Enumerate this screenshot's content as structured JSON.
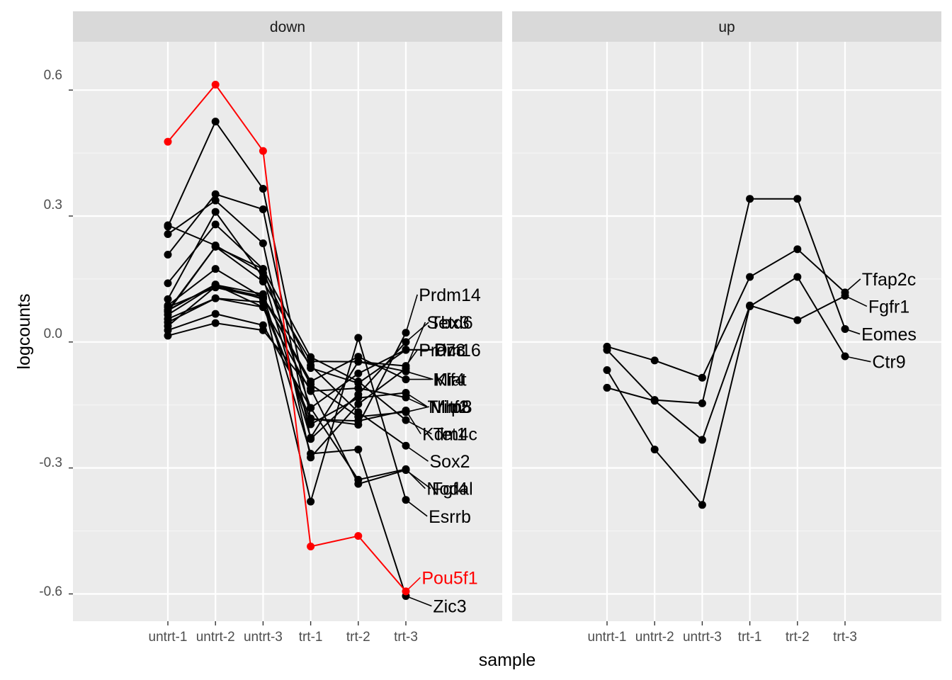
{
  "chart_data": {
    "type": "line",
    "xlabel": "sample",
    "ylabel": "logcounts",
    "categories": [
      "untrt-1",
      "untrt-2",
      "untrt-3",
      "trt-1",
      "trt-2",
      "trt-3"
    ],
    "ylim": [
      -0.665,
      0.715
    ],
    "y_ticks": [
      {
        "value": 0.6,
        "label": "0.6"
      },
      {
        "value": 0.3,
        "label": "0.3"
      },
      {
        "value": 0.0,
        "label": "0.0"
      },
      {
        "value": -0.3,
        "label": "-0.3"
      },
      {
        "value": -0.6,
        "label": "-0.6"
      }
    ],
    "grid": true,
    "legend": "none",
    "highlight_color": "#ff0000",
    "line_color": "#000000",
    "panels": [
      {
        "name": "down",
        "series": [
          {
            "name": "Pou5f1",
            "values": [
              0.477,
              0.613,
              0.455,
              -0.487,
              -0.462,
              -0.594
            ],
            "label_value": -0.561,
            "highlight": true
          },
          {
            "name": "Prdm14",
            "values": [
              0.275,
              0.525,
              0.365,
              -0.182,
              -0.197,
              0.022
            ],
            "label_value": 0.113
          },
          {
            "name": "Tbx3",
            "values": [
              0.208,
              0.352,
              0.316,
              -0.231,
              -0.125,
              0.0
            ],
            "label_value": 0.047
          },
          {
            "name": "Setd6",
            "values": [
              0.257,
              0.337,
              0.235,
              -0.275,
              -0.148,
              -0.063
            ],
            "label_value": 0.047
          },
          {
            "name": "Dcc",
            "values": [
              0.14,
              0.28,
              0.174,
              -0.157,
              -0.075,
              -0.018
            ],
            "label_value": -0.018
          },
          {
            "name": "P73",
            "values": [
              0.278,
              0.23,
              0.164,
              -0.062,
              -0.098,
              -0.019
            ],
            "label_value": -0.019
          },
          {
            "name": "Prdm16",
            "values": [
              0.102,
              0.31,
              0.154,
              -0.228,
              -0.047,
              -0.057
            ],
            "label_value": -0.019
          },
          {
            "name": "Miat",
            "values": [
              0.087,
              0.174,
              0.106,
              -0.094,
              -0.035,
              -0.089
            ],
            "label_value": -0.089
          },
          {
            "name": "Klf4",
            "values": [
              0.075,
              0.227,
              0.144,
              -0.046,
              -0.047,
              -0.07
            ],
            "label_value": -0.089
          },
          {
            "name": "Trim8",
            "values": [
              0.065,
              0.136,
              0.083,
              -0.117,
              -0.11,
              -0.132
            ],
            "label_value": -0.154
          },
          {
            "name": "Nlrp5",
            "values": [
              0.047,
              0.104,
              0.095,
              -0.196,
              -0.133,
              -0.121
            ],
            "label_value": -0.154
          },
          {
            "name": "Mltf2",
            "values": [
              0.038,
              0.132,
              0.108,
              -0.101,
              -0.178,
              -0.167
            ],
            "label_value": -0.154
          },
          {
            "name": "Kdm4c",
            "values": [
              0.055,
              0.104,
              0.083,
              -0.184,
              -0.188,
              -0.163
            ],
            "label_value": -0.219
          },
          {
            "name": "Tet1",
            "values": [
              0.072,
              0.227,
              0.174,
              -0.036,
              -0.094,
              -0.186
            ],
            "label_value": -0.219
          },
          {
            "name": "Sox2",
            "values": [
              0.083,
              0.13,
              0.104,
              -0.056,
              -0.167,
              -0.247
            ],
            "label_value": -0.284
          },
          {
            "name": "Nodal",
            "values": [
              0.028,
              0.067,
              0.04,
              -0.157,
              -0.328,
              -0.303
            ],
            "label_value": -0.349
          },
          {
            "name": "Fgf4",
            "values": [
              0.015,
              0.045,
              0.028,
              -0.111,
              -0.338,
              -0.305
            ],
            "label_value": -0.349
          },
          {
            "name": "Esrrb",
            "values": [
              0.075,
              0.137,
              0.102,
              -0.38,
              0.01,
              -0.376
            ],
            "label_value": -0.415
          },
          {
            "name": "Zic3",
            "values": [
              0.076,
              0.136,
              0.114,
              -0.266,
              -0.256,
              -0.605
            ],
            "label_value": -0.629
          }
        ]
      },
      {
        "name": "up",
        "series": [
          {
            "name": "Tfap2c",
            "values": [
              -0.011,
              -0.044,
              -0.085,
              0.155,
              0.221,
              0.118
            ],
            "label_value": 0.15
          },
          {
            "name": "Fgfr1",
            "values": [
              -0.109,
              -0.14,
              -0.233,
              0.087,
              0.052,
              0.11
            ],
            "label_value": 0.085
          },
          {
            "name": "Eomes",
            "values": [
              -0.019,
              -0.138,
              -0.146,
              0.341,
              0.341,
              0.031
            ],
            "label_value": 0.019
          },
          {
            "name": "Ctr9",
            "values": [
              -0.067,
              -0.256,
              -0.388,
              0.085,
              0.155,
              -0.034
            ],
            "label_value": -0.047
          }
        ]
      }
    ]
  }
}
